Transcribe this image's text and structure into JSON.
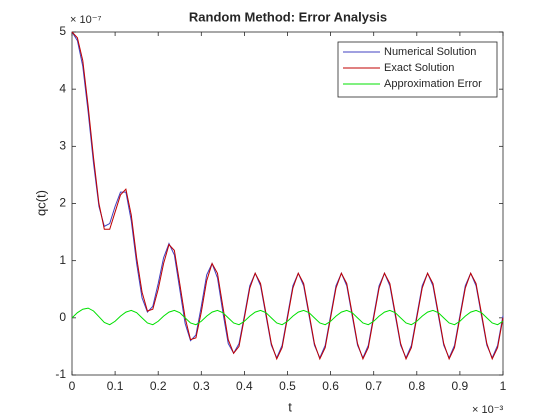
{
  "chart_data": {
    "type": "line",
    "title": "Random Method: Error Analysis",
    "xlabel": "t",
    "ylabel": "qc(t)",
    "x_scale_label": "× 10⁻³",
    "y_scale_label": "× 10⁻⁷",
    "x": [
      0,
      0.0125,
      0.025,
      0.0375,
      0.05,
      0.0625,
      0.075,
      0.0875,
      0.1,
      0.1125,
      0.125,
      0.1375,
      0.15,
      0.1625,
      0.175,
      0.1875,
      0.2,
      0.2125,
      0.225,
      0.2375,
      0.25,
      0.2625,
      0.275,
      0.2875,
      0.3,
      0.3125,
      0.325,
      0.3375,
      0.35,
      0.3625,
      0.375,
      0.3875,
      0.4,
      0.4125,
      0.425,
      0.4375,
      0.45,
      0.4625,
      0.475,
      0.4875,
      0.5,
      0.5125,
      0.525,
      0.5375,
      0.55,
      0.5625,
      0.575,
      0.5875,
      0.6,
      0.6125,
      0.625,
      0.6375,
      0.65,
      0.6625,
      0.675,
      0.6875,
      0.7,
      0.7125,
      0.725,
      0.7375,
      0.75,
      0.7625,
      0.775,
      0.7875,
      0.8,
      0.8125,
      0.825,
      0.8375,
      0.85,
      0.8625,
      0.875,
      0.8875,
      0.9,
      0.9125,
      0.925,
      0.9375,
      0.95,
      0.9625,
      0.975,
      0.9875,
      1.0
    ],
    "series": [
      {
        "name": "Numerical Solution",
        "color": "#4040c0",
        "values": [
          5.0,
          4.85,
          4.4,
          3.6,
          2.7,
          1.95,
          1.6,
          1.65,
          1.95,
          2.2,
          2.2,
          1.7,
          0.95,
          0.35,
          0.1,
          0.2,
          0.6,
          1.05,
          1.3,
          1.1,
          0.5,
          -0.1,
          -0.4,
          -0.3,
          0.2,
          0.75,
          0.95,
          0.7,
          0.1,
          -0.45,
          -0.62,
          -0.45,
          0.04,
          0.56,
          0.78,
          0.56,
          0.04,
          -0.48,
          -0.7,
          -0.48,
          0.04,
          0.56,
          0.78,
          0.56,
          0.04,
          -0.48,
          -0.7,
          -0.48,
          0.04,
          0.56,
          0.78,
          0.56,
          0.04,
          -0.48,
          -0.7,
          -0.48,
          0.04,
          0.56,
          0.78,
          0.56,
          0.04,
          -0.48,
          -0.7,
          -0.48,
          0.04,
          0.56,
          0.78,
          0.56,
          0.04,
          -0.48,
          -0.7,
          -0.48,
          0.04,
          0.56,
          0.78,
          0.56,
          0.04,
          -0.48,
          -0.7,
          -0.48,
          0.04
        ]
      },
      {
        "name": "Exact Solution",
        "color": "#c00000",
        "values": [
          5.0,
          4.9,
          4.5,
          3.7,
          2.8,
          2.0,
          1.55,
          1.55,
          1.85,
          2.15,
          2.25,
          1.8,
          1.05,
          0.45,
          0.12,
          0.15,
          0.5,
          0.95,
          1.28,
          1.18,
          0.6,
          0.0,
          -0.38,
          -0.35,
          0.1,
          0.65,
          0.95,
          0.78,
          0.2,
          -0.38,
          -0.62,
          -0.5,
          0.0,
          0.52,
          0.78,
          0.6,
          0.08,
          -0.45,
          -0.72,
          -0.52,
          0.0,
          0.52,
          0.78,
          0.6,
          0.08,
          -0.45,
          -0.72,
          -0.52,
          0.0,
          0.52,
          0.78,
          0.6,
          0.08,
          -0.45,
          -0.72,
          -0.52,
          0.0,
          0.52,
          0.78,
          0.6,
          0.08,
          -0.45,
          -0.72,
          -0.52,
          0.0,
          0.52,
          0.78,
          0.6,
          0.08,
          -0.45,
          -0.72,
          -0.52,
          0.0,
          0.52,
          0.78,
          0.6,
          0.08,
          -0.45,
          -0.72,
          -0.52,
          0.0
        ]
      },
      {
        "name": "Approximation Error",
        "color": "#00e000",
        "values": [
          0,
          0.09,
          0.15,
          0.17,
          0.12,
          0.02,
          -0.08,
          -0.12,
          -0.06,
          0.03,
          0.1,
          0.13,
          0.09,
          0.0,
          -0.09,
          -0.12,
          -0.06,
          0.03,
          0.1,
          0.13,
          0.09,
          0.0,
          -0.09,
          -0.12,
          -0.06,
          0.03,
          0.1,
          0.13,
          0.09,
          0.0,
          -0.09,
          -0.12,
          -0.06,
          0.03,
          0.1,
          0.13,
          0.09,
          0.0,
          -0.09,
          -0.12,
          -0.06,
          0.03,
          0.1,
          0.13,
          0.09,
          0.0,
          -0.09,
          -0.12,
          -0.06,
          0.03,
          0.1,
          0.13,
          0.09,
          0.0,
          -0.09,
          -0.12,
          -0.06,
          0.03,
          0.1,
          0.13,
          0.09,
          0.0,
          -0.09,
          -0.12,
          -0.06,
          0.03,
          0.1,
          0.13,
          0.09,
          0.0,
          -0.09,
          -0.12,
          -0.06,
          0.03,
          0.1,
          0.13,
          0.09,
          0.0,
          -0.09,
          -0.12,
          -0.06
        ]
      }
    ],
    "xlim": [
      0,
      1
    ],
    "xticks": [
      0,
      0.1,
      0.2,
      0.3,
      0.4,
      0.5,
      0.6,
      0.7,
      0.8,
      0.9,
      1
    ],
    "ylim": [
      -1,
      5
    ],
    "yticks": [
      -1,
      0,
      1,
      2,
      3,
      4,
      5
    ],
    "legend": "upper right"
  }
}
